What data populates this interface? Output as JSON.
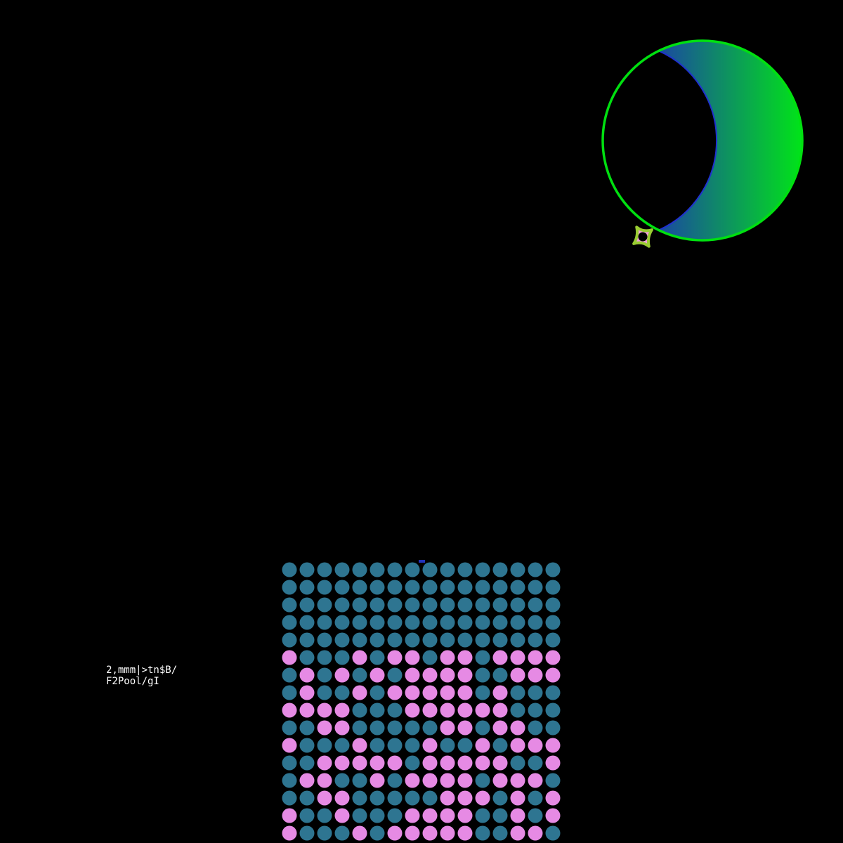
{
  "block_label": {
    "line1": "2,mmm|>tn$B/",
    "line2": "F2Pool/gI"
  },
  "colors": {
    "background": "#000000",
    "moon_outline": "#00e010",
    "moon_inner_edge": "#2030d0",
    "moon_gradient_start": "#1a4aa0",
    "moon_gradient_end": "#00e418",
    "tx_teal": "#2e7591",
    "tx_pink": "#e68ae4",
    "marker_blue": "#2233bb",
    "icon_outline": "#9acd32",
    "icon_fill": "#f0a0d8"
  },
  "icons": [
    "crescent-moon-icon",
    "four-point-star-icon"
  ],
  "tx_grid": {
    "columns": 16,
    "rows": [
      "0000000000000000",
      "0000000000000000",
      "0000000000000000",
      "0000000000000000",
      "0000000000000000",
      "1000101101101111",
      "0101010111100111",
      "0100101111101000",
      "1111000111111000",
      "0011000001101100",
      "1000100010010111",
      "0011111011111001",
      "0110010111101110",
      "0011000001110101",
      "1001000111100101",
      "1000101111100110"
    ]
  }
}
